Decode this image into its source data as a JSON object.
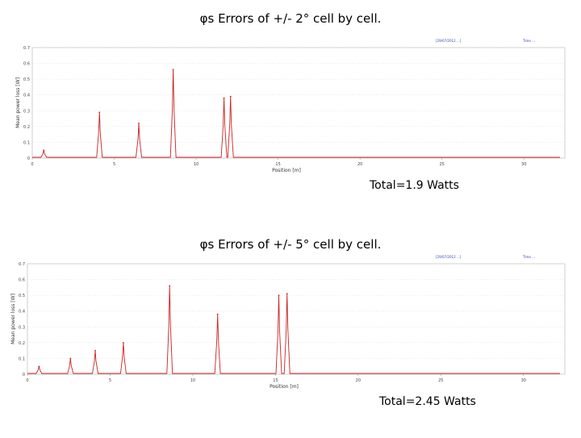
{
  "chart_data": [
    {
      "type": "line",
      "title": "φs Errors of +/- 2° cell by cell.",
      "xlabel": "Position [m]",
      "ylabel": "Mean power loss [W]",
      "xlim": [
        0,
        32.5
      ],
      "ylim": [
        0,
        0.7
      ],
      "x_ticks": [
        "0",
        "5",
        "10",
        "15",
        "20",
        "25",
        "30"
      ],
      "y_ticks": [
        "0",
        "0.1",
        "0.2",
        "0.3",
        "0.4",
        "0.5",
        "0.6",
        "0.7"
      ],
      "header_left": "[29/07/2012 ...]",
      "header_right": "Time ...",
      "total": "Total=1.9 Watts",
      "color": "#cc2222",
      "series": [
        {
          "peaks": [
            {
              "x": 0.7,
              "y": 0.05
            },
            {
              "x": 4.1,
              "y": 0.29
            },
            {
              "x": 6.5,
              "y": 0.22
            },
            {
              "x": 8.6,
              "y": 0.56
            },
            {
              "x": 11.7,
              "y": 0.38
            },
            {
              "x": 12.1,
              "y": 0.39
            }
          ]
        }
      ]
    },
    {
      "type": "line",
      "title": "φs Errors of +/- 5° cell by cell.",
      "xlabel": "Position [m]",
      "ylabel": "Mean power loss [W]",
      "xlim": [
        0,
        32.5
      ],
      "ylim": [
        0,
        0.7
      ],
      "x_ticks": [
        "0",
        "5",
        "10",
        "15",
        "20",
        "25",
        "30"
      ],
      "y_ticks": [
        "0",
        "0.1",
        "0.2",
        "0.3",
        "0.4",
        "0.5",
        "0.6",
        "0.7"
      ],
      "header_left": "[29/07/2012 ...]",
      "header_right": "Time ...",
      "total": "Total=2.45 Watts",
      "color": "#cc2222",
      "series": [
        {
          "peaks": [
            {
              "x": 0.7,
              "y": 0.05
            },
            {
              "x": 2.6,
              "y": 0.1
            },
            {
              "x": 4.1,
              "y": 0.15
            },
            {
              "x": 5.8,
              "y": 0.2
            },
            {
              "x": 8.6,
              "y": 0.56
            },
            {
              "x": 11.5,
              "y": 0.38
            },
            {
              "x": 15.2,
              "y": 0.5
            },
            {
              "x": 15.7,
              "y": 0.51
            }
          ]
        }
      ]
    }
  ]
}
